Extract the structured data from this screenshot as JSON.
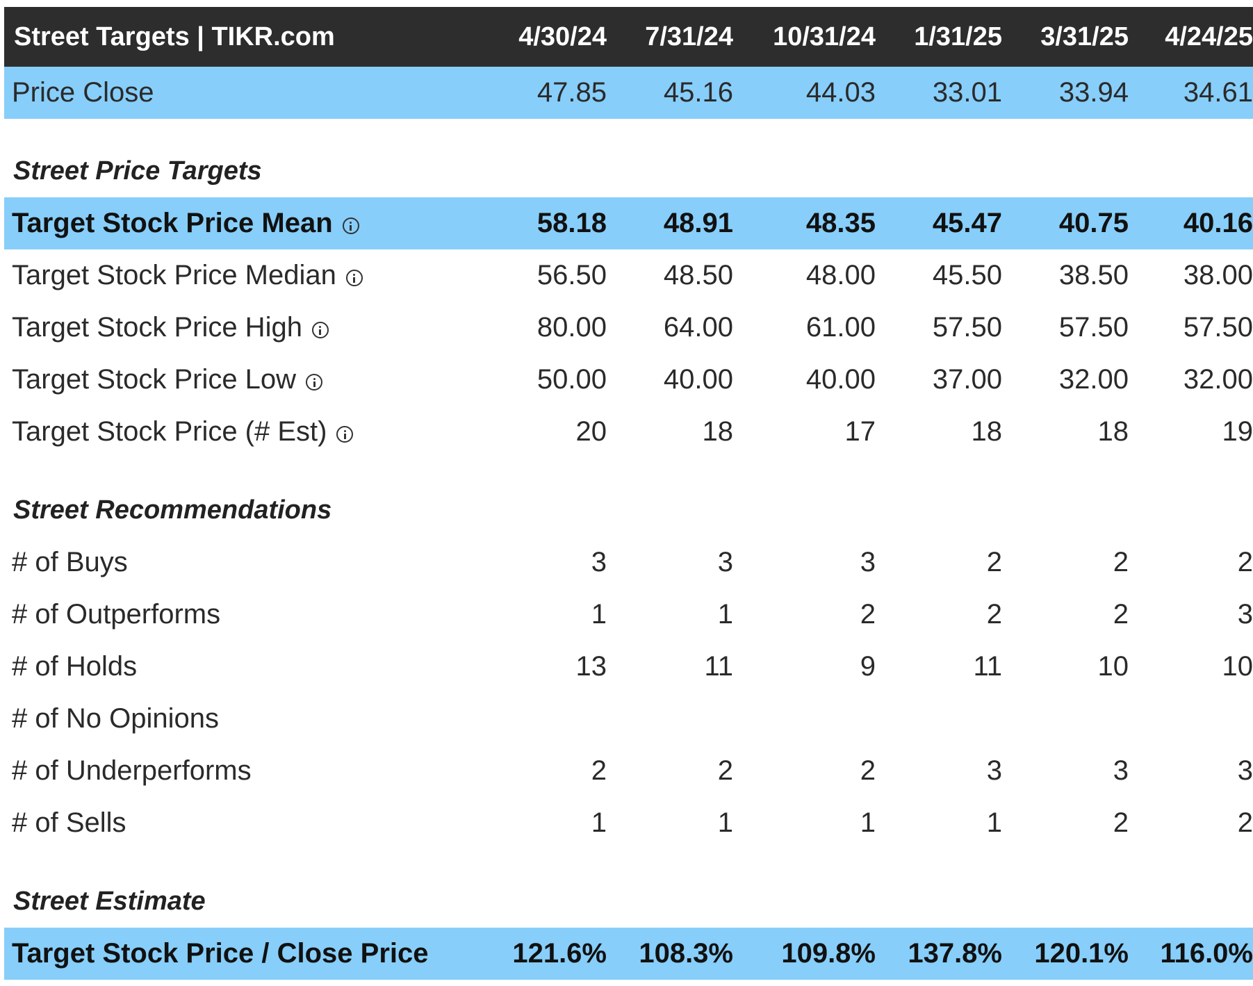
{
  "header": {
    "title": "Street Targets | TIKR.com",
    "dates": [
      "4/30/24",
      "7/31/24",
      "10/31/24",
      "1/31/25",
      "3/31/25",
      "4/24/25"
    ]
  },
  "price_close": {
    "label": "Price Close",
    "values": [
      "47.85",
      "45.16",
      "44.03",
      "33.01",
      "33.94",
      "34.61"
    ]
  },
  "street_price_targets": {
    "title": "Street Price Targets",
    "rows": [
      {
        "label": "Target Stock Price Mean",
        "info_icon": "info-circle-icon",
        "values": [
          "58.18",
          "48.91",
          "48.35",
          "45.47",
          "40.75",
          "40.16"
        ]
      },
      {
        "label": "Target Stock Price Median",
        "info_icon": "info-circle-icon",
        "values": [
          "56.50",
          "48.50",
          "48.00",
          "45.50",
          "38.50",
          "38.00"
        ]
      },
      {
        "label": "Target Stock Price High",
        "info_icon": "info-circle-icon",
        "values": [
          "80.00",
          "64.00",
          "61.00",
          "57.50",
          "57.50",
          "57.50"
        ]
      },
      {
        "label": "Target Stock Price Low",
        "info_icon": "info-circle-icon",
        "values": [
          "50.00",
          "40.00",
          "40.00",
          "37.00",
          "32.00",
          "32.00"
        ]
      },
      {
        "label": "Target Stock Price (# Est)",
        "info_icon": "info-circle-icon",
        "values": [
          "20",
          "18",
          "17",
          "18",
          "18",
          "19"
        ]
      }
    ]
  },
  "street_recommendations": {
    "title": "Street Recommendations",
    "rows": [
      {
        "label": "# of Buys",
        "values": [
          "3",
          "3",
          "3",
          "2",
          "2",
          "2"
        ]
      },
      {
        "label": "# of Outperforms",
        "values": [
          "1",
          "1",
          "2",
          "2",
          "2",
          "3"
        ]
      },
      {
        "label": "# of Holds",
        "values": [
          "13",
          "11",
          "9",
          "11",
          "10",
          "10"
        ]
      },
      {
        "label": "# of No Opinions",
        "values": [
          "",
          "",
          "",
          "",
          "",
          ""
        ]
      },
      {
        "label": "# of Underperforms",
        "values": [
          "2",
          "2",
          "2",
          "3",
          "3",
          "3"
        ]
      },
      {
        "label": "# of Sells",
        "values": [
          "1",
          "1",
          "1",
          "1",
          "2",
          "2"
        ]
      }
    ]
  },
  "street_estimate": {
    "title": "Street Estimate",
    "row": {
      "label": "Target Stock Price / Close Price",
      "values": [
        "121.6%",
        "108.3%",
        "109.8%",
        "137.8%",
        "120.1%",
        "116.0%"
      ]
    }
  },
  "colors": {
    "header_bg": "#2d2d2d",
    "highlight_bg": "#87cefa",
    "text": "#2a2a2a"
  }
}
